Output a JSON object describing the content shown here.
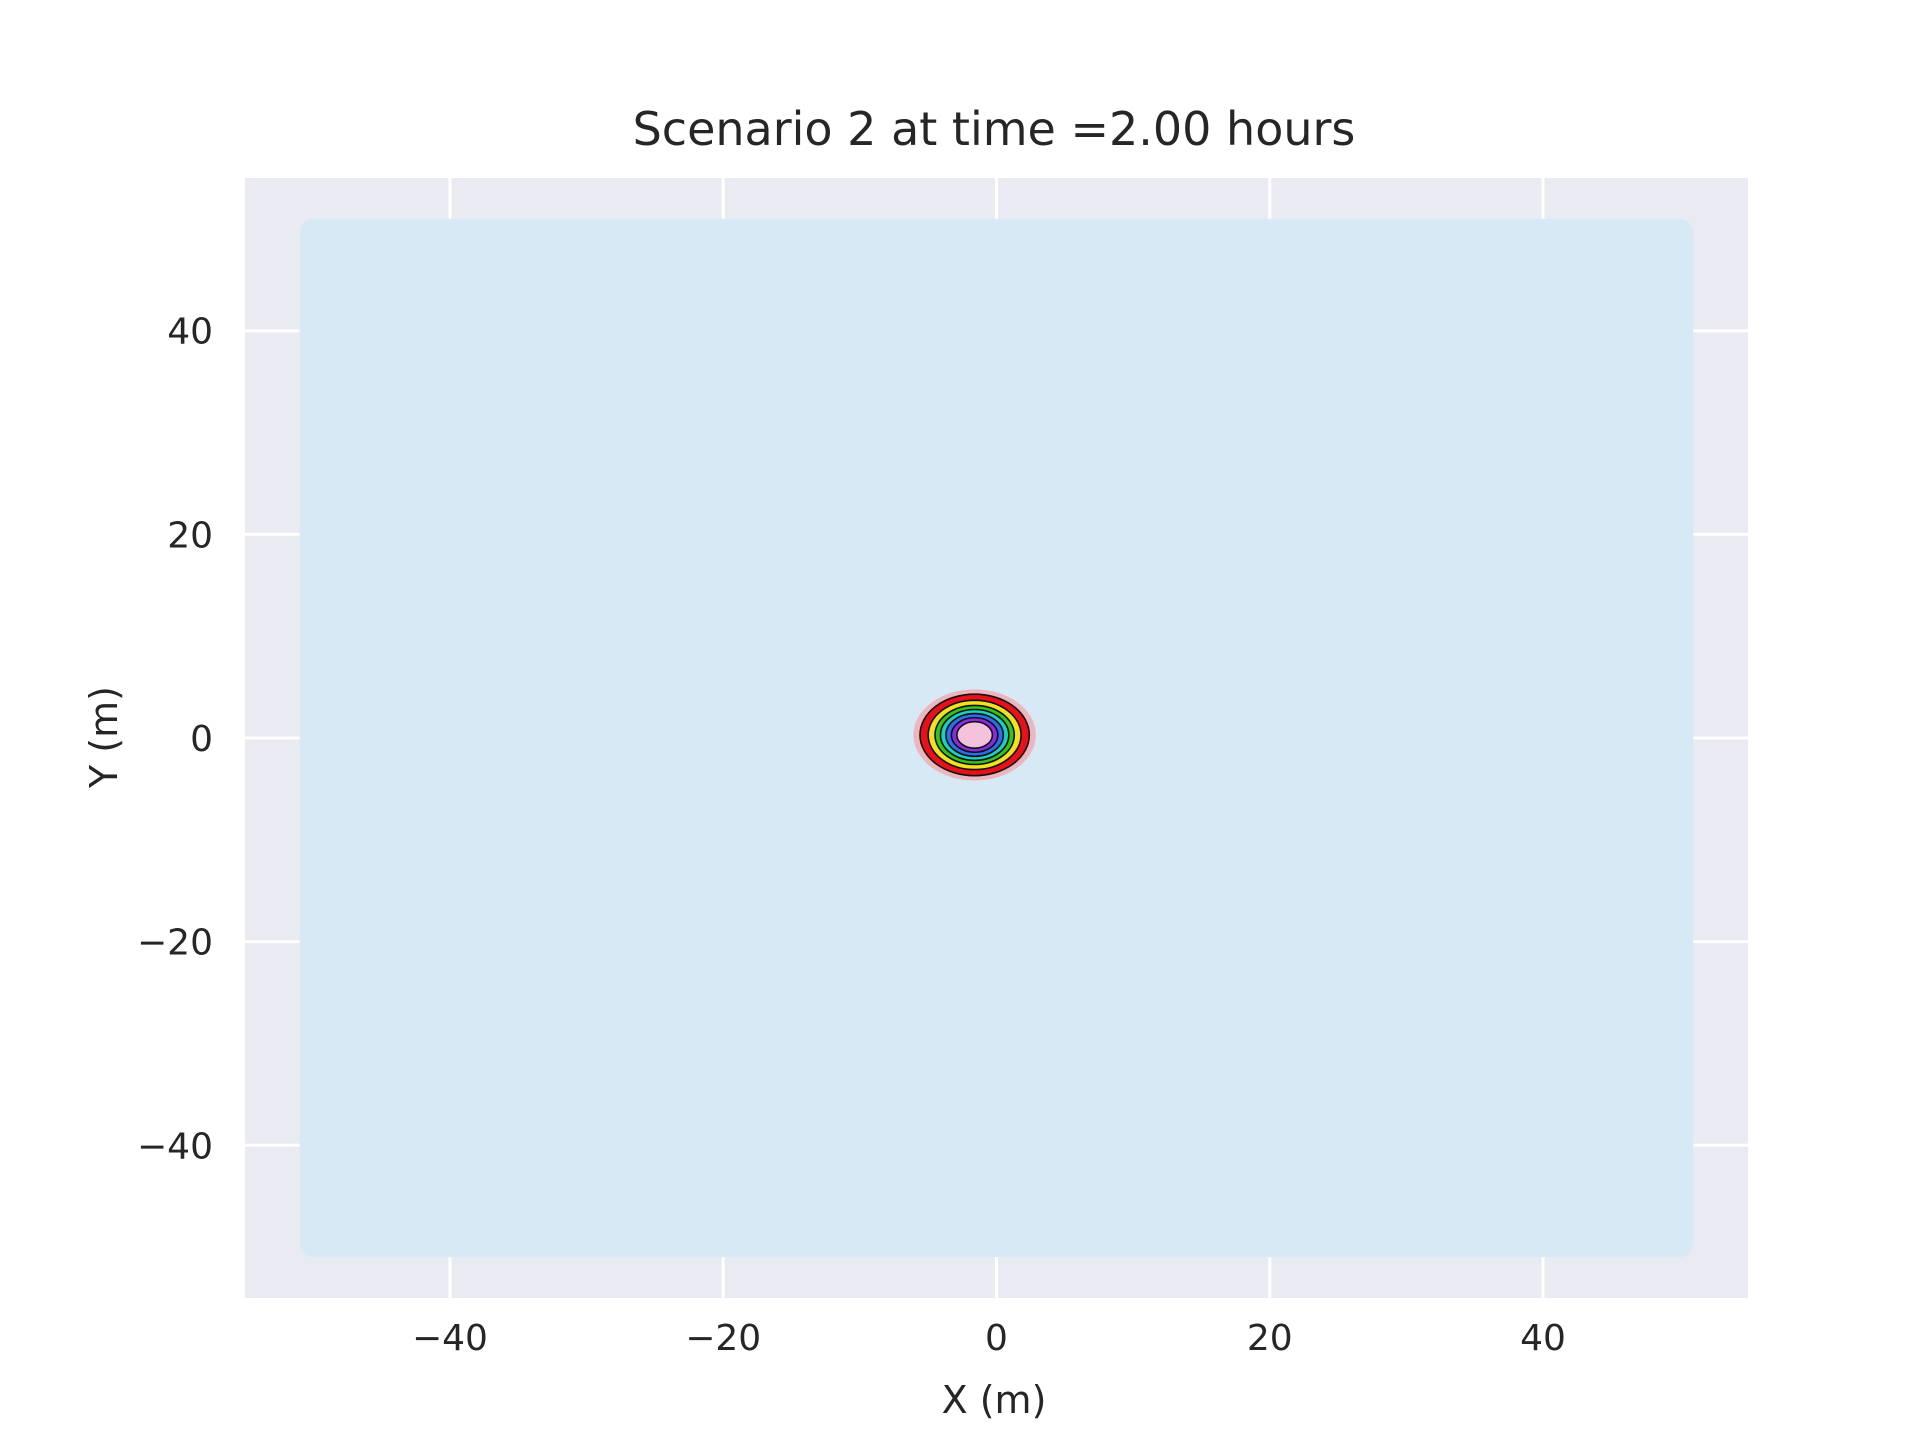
{
  "chart_data": {
    "type": "contour",
    "title": "Scenario 2 at time =2.00 hours",
    "xlabel": "X (m)",
    "ylabel": "Y (m)",
    "xlim": [
      -55,
      55
    ],
    "ylim": [
      -55,
      55
    ],
    "xticks": [
      -40,
      -20,
      0,
      20,
      40
    ],
    "xtick_labels": [
      "−40",
      "−20",
      "0",
      "20",
      "40"
    ],
    "yticks": [
      40,
      20,
      0,
      -20,
      -40
    ],
    "ytick_labels": [
      "40",
      "20",
      "0",
      "−20",
      "−40"
    ],
    "grid": true,
    "domain_extent": {
      "x": [
        -51,
        51
      ],
      "y": [
        -51,
        51
      ]
    },
    "plume": {
      "center": [
        -1.6,
        0.3
      ],
      "contour_radii": [
        4.0,
        3.4,
        2.9,
        2.5,
        2.1,
        1.7,
        1.3
      ],
      "contour_colors": [
        "#e8101a",
        "#f2e11f",
        "#34c41a",
        "#18d0c4",
        "#2a6ff0",
        "#8a2be2",
        "#f4c2dc"
      ]
    },
    "colors": {
      "axes_background": "#eaeaf2",
      "domain_fill": "#d8e9f6",
      "grid": "#ffffff",
      "text": "#262626"
    }
  }
}
